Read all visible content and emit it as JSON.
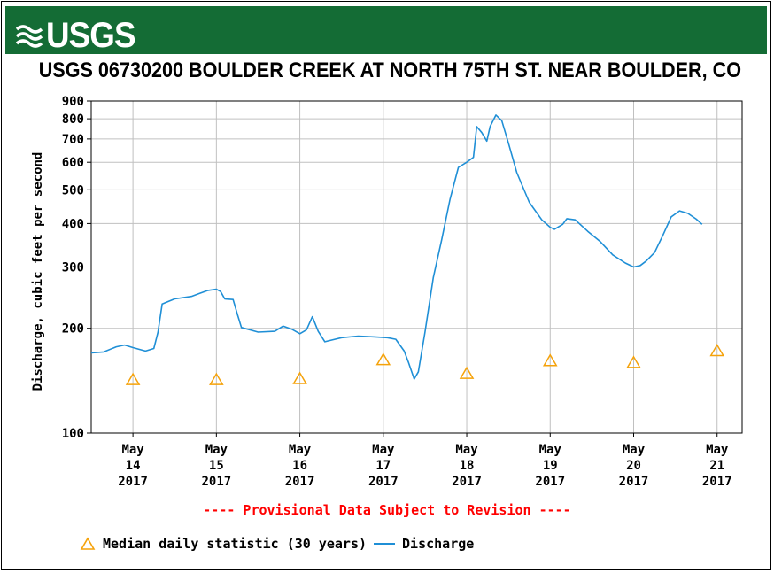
{
  "logo": {
    "text": "USGS"
  },
  "title": "USGS 06730200 BOULDER CREEK AT NORTH 75TH ST. NEAR BOULDER, CO",
  "provisional": "---- Provisional Data Subject to Revision ----",
  "legend": {
    "median": "Median daily statistic (30 years)",
    "discharge": "Discharge"
  },
  "colors": {
    "banner": "#146c35",
    "discharge": "#1f8fd6",
    "median": "#f5a20a",
    "provisional": "#ff0000"
  },
  "chart_data": {
    "type": "line",
    "title": "USGS 06730200 BOULDER CREEK AT NORTH 75TH ST. NEAR BOULDER, CO",
    "ylabel": "Discharge, cubic feet per second",
    "yscale": "log",
    "ylim": [
      100,
      900
    ],
    "yticks": [
      100,
      200,
      300,
      400,
      500,
      600,
      700,
      800,
      900
    ],
    "xlim": [
      13.5,
      21.3
    ],
    "xticks": [
      {
        "x": 14,
        "label": [
          "May",
          "14",
          "2017"
        ]
      },
      {
        "x": 15,
        "label": [
          "May",
          "15",
          "2017"
        ]
      },
      {
        "x": 16,
        "label": [
          "May",
          "16",
          "2017"
        ]
      },
      {
        "x": 17,
        "label": [
          "May",
          "17",
          "2017"
        ]
      },
      {
        "x": 18,
        "label": [
          "May",
          "18",
          "2017"
        ]
      },
      {
        "x": 19,
        "label": [
          "May",
          "19",
          "2017"
        ]
      },
      {
        "x": 20,
        "label": [
          "May",
          "20",
          "2017"
        ]
      },
      {
        "x": 21,
        "label": [
          "May",
          "21",
          "2017"
        ]
      }
    ],
    "grid": true,
    "legend_position": "bottom",
    "series": [
      {
        "name": "Discharge",
        "type": "line",
        "points": [
          [
            13.5,
            170
          ],
          [
            13.65,
            171
          ],
          [
            13.8,
            177
          ],
          [
            13.9,
            179
          ],
          [
            14.0,
            176
          ],
          [
            14.15,
            172
          ],
          [
            14.25,
            175
          ],
          [
            14.3,
            195
          ],
          [
            14.35,
            235
          ],
          [
            14.5,
            243
          ],
          [
            14.7,
            247
          ],
          [
            14.8,
            252
          ],
          [
            14.9,
            257
          ],
          [
            15.0,
            259
          ],
          [
            15.05,
            255
          ],
          [
            15.1,
            243
          ],
          [
            15.2,
            242
          ],
          [
            15.25,
            220
          ],
          [
            15.3,
            201
          ],
          [
            15.5,
            195
          ],
          [
            15.7,
            196
          ],
          [
            15.8,
            203
          ],
          [
            15.9,
            199
          ],
          [
            16.0,
            193
          ],
          [
            16.08,
            198
          ],
          [
            16.15,
            216
          ],
          [
            16.22,
            196
          ],
          [
            16.3,
            183
          ],
          [
            16.5,
            188
          ],
          [
            16.7,
            190
          ],
          [
            16.9,
            189
          ],
          [
            17.05,
            188
          ],
          [
            17.15,
            186
          ],
          [
            17.25,
            172
          ],
          [
            17.3,
            160
          ],
          [
            17.37,
            143
          ],
          [
            17.42,
            150
          ],
          [
            17.5,
            195
          ],
          [
            17.6,
            280
          ],
          [
            17.7,
            360
          ],
          [
            17.8,
            470
          ],
          [
            17.9,
            580
          ],
          [
            18.0,
            600
          ],
          [
            18.08,
            620
          ],
          [
            18.12,
            760
          ],
          [
            18.18,
            730
          ],
          [
            18.24,
            690
          ],
          [
            18.28,
            760
          ],
          [
            18.35,
            820
          ],
          [
            18.42,
            790
          ],
          [
            18.5,
            680
          ],
          [
            18.6,
            560
          ],
          [
            18.75,
            460
          ],
          [
            18.9,
            410
          ],
          [
            19.0,
            390
          ],
          [
            19.05,
            385
          ],
          [
            19.15,
            398
          ],
          [
            19.2,
            413
          ],
          [
            19.3,
            410
          ],
          [
            19.45,
            380
          ],
          [
            19.6,
            355
          ],
          [
            19.75,
            325
          ],
          [
            19.9,
            308
          ],
          [
            20.0,
            300
          ],
          [
            20.08,
            303
          ],
          [
            20.15,
            312
          ],
          [
            20.25,
            330
          ],
          [
            20.35,
            370
          ],
          [
            20.45,
            418
          ],
          [
            20.55,
            435
          ],
          [
            20.65,
            428
          ],
          [
            20.75,
            412
          ],
          [
            20.82,
            398
          ]
        ]
      },
      {
        "name": "Median daily statistic (30 years)",
        "type": "scatter",
        "marker": "triangle-open",
        "points": [
          [
            14.0,
            142
          ],
          [
            15.0,
            142
          ],
          [
            16.0,
            143
          ],
          [
            17.0,
            162
          ],
          [
            18.0,
            148
          ],
          [
            19.0,
            161
          ],
          [
            20.0,
            159
          ],
          [
            21.0,
            172
          ]
        ]
      }
    ]
  }
}
